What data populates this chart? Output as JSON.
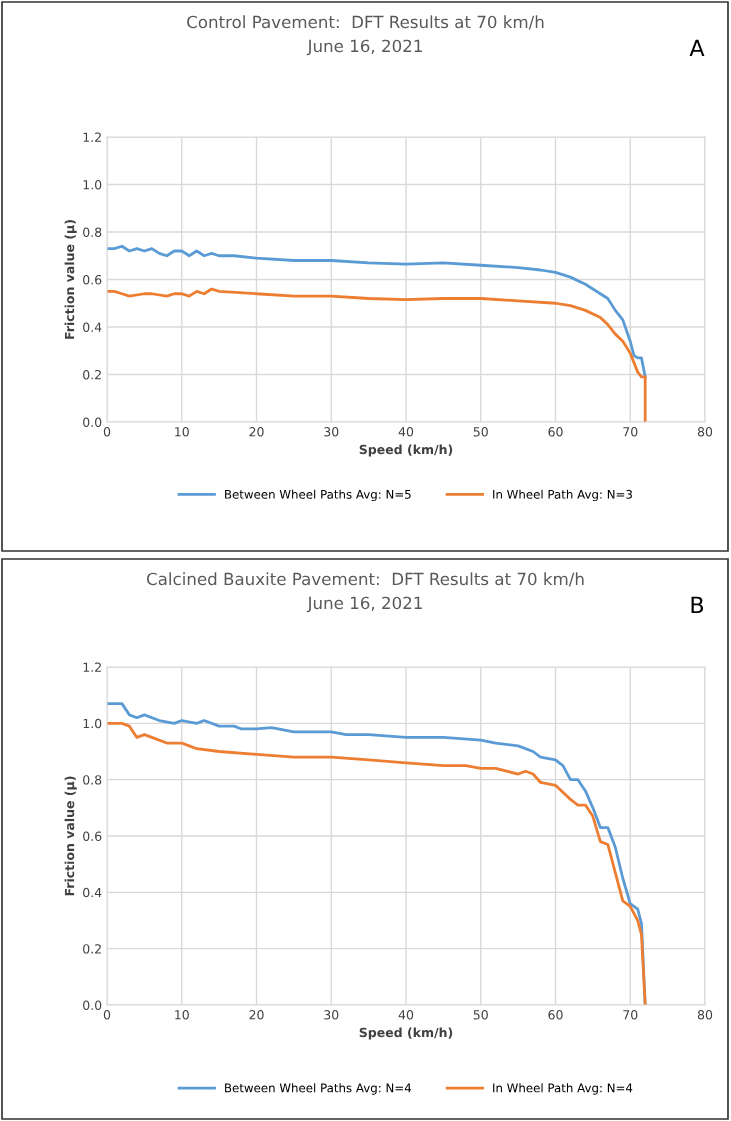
{
  "chart_data": [
    {
      "type": "line",
      "title": "Control Pavement:  DFT Results at 70 km/h",
      "subtitle": "June 16, 2021",
      "annotations": [
        "A"
      ],
      "xlabel": "Speed (km/h)",
      "ylabel": "Friction value (µ)",
      "xlim": [
        0,
        80
      ],
      "xticks": [
        0,
        10,
        20,
        30,
        40,
        50,
        60,
        70,
        80
      ],
      "ylim": [
        0,
        1.2
      ],
      "yticks": [
        {
          "value": 0,
          "label": "0.0"
        },
        {
          "value": 0.2,
          "label": "0.2"
        },
        {
          "value": 0.4,
          "label": "0.4"
        },
        {
          "value": 0.6,
          "label": "0.6"
        },
        {
          "value": 0.8,
          "label": "0.8"
        },
        {
          "value": 1.0,
          "label": "1.0"
        },
        {
          "value": 1.2,
          "label": "1.2"
        }
      ],
      "grid": true,
      "legend": "bottom",
      "marker": "none",
      "line_style": "solid",
      "series": [
        {
          "name": "Between Wheel Paths Avg: N=5",
          "color": "#5b9bd5",
          "x": [
            0,
            1,
            2,
            3,
            4,
            5,
            6,
            7,
            8,
            9,
            10,
            11,
            12,
            13,
            14,
            15,
            17,
            20,
            25,
            30,
            35,
            40,
            45,
            50,
            55,
            58,
            60,
            62,
            64,
            65,
            66,
            67,
            68,
            69,
            70,
            70.5,
            71,
            71.5,
            72
          ],
          "values": [
            0.73,
            0.73,
            0.74,
            0.72,
            0.73,
            0.72,
            0.73,
            0.71,
            0.7,
            0.72,
            0.72,
            0.7,
            0.72,
            0.7,
            0.71,
            0.7,
            0.7,
            0.69,
            0.68,
            0.68,
            0.67,
            0.665,
            0.67,
            0.66,
            0.65,
            0.64,
            0.63,
            0.61,
            0.58,
            0.56,
            0.54,
            0.52,
            0.47,
            0.43,
            0.34,
            0.28,
            0.27,
            0.27,
            0.19
          ]
        },
        {
          "name": "In Wheel Path Avg: N=3",
          "color": "#ed7d31",
          "x": [
            0,
            1,
            2,
            3,
            5,
            6,
            8,
            9,
            10,
            11,
            12,
            13,
            14,
            15,
            20,
            25,
            30,
            35,
            40,
            45,
            50,
            55,
            60,
            62,
            64,
            66,
            67,
            68,
            69,
            70,
            71,
            71.5,
            72,
            72
          ],
          "values": [
            0.55,
            0.55,
            0.54,
            0.53,
            0.54,
            0.54,
            0.53,
            0.54,
            0.54,
            0.53,
            0.55,
            0.54,
            0.56,
            0.55,
            0.54,
            0.53,
            0.53,
            0.52,
            0.515,
            0.52,
            0.52,
            0.51,
            0.5,
            0.49,
            0.47,
            0.44,
            0.41,
            0.37,
            0.34,
            0.29,
            0.21,
            0.19,
            0.19,
            0.0
          ]
        }
      ]
    },
    {
      "type": "line",
      "title": "Calcined Bauxite Pavement:  DFT Results at 70 km/h",
      "subtitle": "June 16, 2021",
      "annotations": [
        "B"
      ],
      "xlabel": "Speed (km/h)",
      "ylabel": "Friction value (µ)",
      "xlim": [
        0,
        80
      ],
      "xticks": [
        0,
        10,
        20,
        30,
        40,
        50,
        60,
        70,
        80
      ],
      "ylim": [
        0,
        1.2
      ],
      "yticks": [
        {
          "value": 0,
          "label": "0.0"
        },
        {
          "value": 0.2,
          "label": "0.2"
        },
        {
          "value": 0.4,
          "label": "0.4"
        },
        {
          "value": 0.6,
          "label": "0.6"
        },
        {
          "value": 0.8,
          "label": "0.8"
        },
        {
          "value": 1.0,
          "label": "1.0"
        },
        {
          "value": 1.2,
          "label": "1.2"
        }
      ],
      "grid": true,
      "legend": "bottom",
      "marker": "none",
      "line_style": "solid",
      "series": [
        {
          "name": "Between Wheel Paths Avg: N=4",
          "color": "#5b9bd5",
          "x": [
            0,
            2,
            3,
            4,
            5,
            7,
            9,
            10,
            12,
            13,
            15,
            17,
            18,
            20,
            22,
            25,
            30,
            32,
            35,
            40,
            45,
            50,
            52,
            55,
            57,
            58,
            60,
            61,
            62,
            63,
            64,
            65,
            66,
            67,
            68,
            69,
            70,
            71,
            71.5,
            72
          ],
          "values": [
            1.07,
            1.07,
            1.03,
            1.02,
            1.03,
            1.01,
            1.0,
            1.01,
            1.0,
            1.01,
            0.99,
            0.99,
            0.98,
            0.98,
            0.985,
            0.97,
            0.97,
            0.96,
            0.96,
            0.95,
            0.95,
            0.94,
            0.93,
            0.92,
            0.9,
            0.88,
            0.87,
            0.85,
            0.8,
            0.8,
            0.76,
            0.7,
            0.63,
            0.63,
            0.56,
            0.45,
            0.36,
            0.34,
            0.29,
            0.0
          ]
        },
        {
          "name": "In Wheel Path Avg: N=4",
          "color": "#ed7d31",
          "x": [
            0,
            2,
            3,
            4,
            5,
            6,
            8,
            10,
            11,
            12,
            15,
            20,
            25,
            30,
            35,
            40,
            45,
            48,
            50,
            52,
            55,
            56,
            57,
            58,
            60,
            62,
            63,
            64,
            65,
            66,
            67,
            68,
            69,
            70,
            71,
            71.5,
            72
          ],
          "values": [
            1.0,
            1.0,
            0.99,
            0.95,
            0.96,
            0.95,
            0.93,
            0.93,
            0.92,
            0.91,
            0.9,
            0.89,
            0.88,
            0.88,
            0.87,
            0.86,
            0.85,
            0.85,
            0.84,
            0.84,
            0.82,
            0.83,
            0.82,
            0.79,
            0.78,
            0.73,
            0.71,
            0.71,
            0.67,
            0.58,
            0.57,
            0.47,
            0.37,
            0.35,
            0.3,
            0.25,
            0.0
          ]
        }
      ]
    }
  ]
}
